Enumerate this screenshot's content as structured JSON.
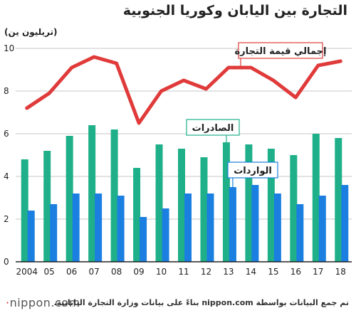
{
  "header": {
    "title": "التجارة بين اليابان وكوريا الجنوبية",
    "unit_label": "(تريليون ين)"
  },
  "footer": {
    "logo_text": "nippon.com",
    "source": "تم جمع البيانات بواسطة nippon.com بناءً على بيانات وزارة التجارة اليابانية."
  },
  "colors": {
    "exports": "#1fb08a",
    "imports": "#1a7fe0",
    "total": "#e03a3a"
  },
  "chart_data": {
    "type": "bar",
    "categories": [
      "2004",
      "05",
      "06",
      "07",
      "08",
      "09",
      "10",
      "11",
      "12",
      "13",
      "14",
      "15",
      "16",
      "17",
      "18"
    ],
    "ylim": [
      0,
      10
    ],
    "yticks": [
      0,
      2,
      4,
      6,
      8,
      10
    ],
    "grid": true,
    "series": [
      {
        "name": "الصادرات",
        "type": "bar",
        "values": [
          4.8,
          5.2,
          5.9,
          6.4,
          6.2,
          4.4,
          5.5,
          5.3,
          4.9,
          5.6,
          5.5,
          5.3,
          5.0,
          6.0,
          5.8
        ]
      },
      {
        "name": "الواردات",
        "type": "bar",
        "values": [
          2.4,
          2.7,
          3.2,
          3.2,
          3.1,
          2.1,
          2.5,
          3.2,
          3.2,
          3.5,
          3.6,
          3.2,
          2.7,
          3.1,
          3.6
        ]
      },
      {
        "name": "إجمالي قيمة التجارة",
        "type": "line",
        "values": [
          7.2,
          7.9,
          9.1,
          9.6,
          9.3,
          6.5,
          8.0,
          8.5,
          8.1,
          9.1,
          9.1,
          8.5,
          7.7,
          9.2,
          9.4
        ]
      }
    ]
  }
}
